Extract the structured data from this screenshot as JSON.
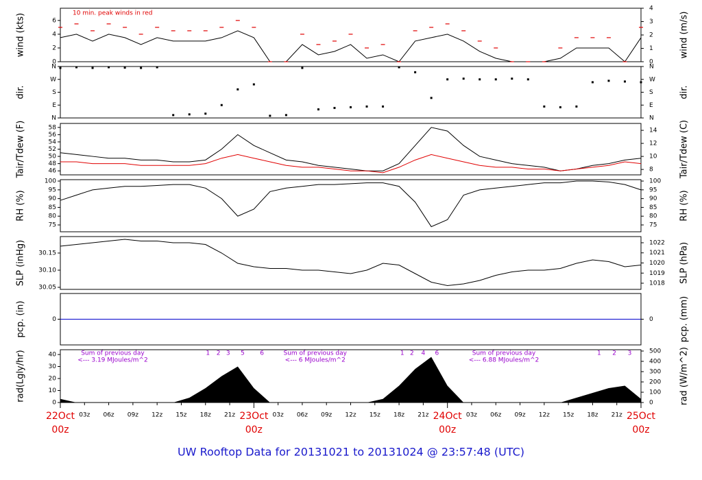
{
  "title": "UW Rooftop Data for 20131021  to  20131024 @ 23:57:48  (UTC)",
  "time_axis": {
    "xlim": [
      0,
      72
    ],
    "x": [
      0,
      2,
      4,
      6,
      8,
      10,
      12,
      14,
      16,
      18,
      20,
      22,
      24,
      26,
      28,
      30,
      32,
      34,
      36,
      38,
      40,
      42,
      44,
      46,
      48,
      50,
      52,
      54,
      56,
      58,
      60,
      62,
      64,
      66,
      68,
      70,
      72
    ],
    "xticks": [
      {
        "value": 0,
        "label": "00z"
      },
      {
        "value": 3,
        "label": "03z"
      },
      {
        "value": 6,
        "label": "06z"
      },
      {
        "value": 9,
        "label": "09z"
      },
      {
        "value": 12,
        "label": "12z"
      },
      {
        "value": 15,
        "label": "15z"
      },
      {
        "value": 18,
        "label": "18z"
      },
      {
        "value": 21,
        "label": "21z"
      },
      {
        "value": 24,
        "label": "00z"
      },
      {
        "value": 27,
        "label": "03z"
      },
      {
        "value": 30,
        "label": "06z"
      },
      {
        "value": 33,
        "label": "09z"
      },
      {
        "value": 36,
        "label": "12z"
      },
      {
        "value": 39,
        "label": "15z"
      },
      {
        "value": 42,
        "label": "18z"
      },
      {
        "value": 45,
        "label": "21z"
      },
      {
        "value": 48,
        "label": "00z"
      },
      {
        "value": 51,
        "label": "03z"
      },
      {
        "value": 54,
        "label": "06z"
      },
      {
        "value": 57,
        "label": "09z"
      },
      {
        "value": 60,
        "label": "12z"
      },
      {
        "value": 63,
        "label": "15z"
      },
      {
        "value": 66,
        "label": "18z"
      },
      {
        "value": 69,
        "label": "21z"
      },
      {
        "value": 72,
        "label": "00z"
      }
    ],
    "day_labels": [
      {
        "value": 0,
        "label": "22Oct"
      },
      {
        "value": 24,
        "label": "23Oct"
      },
      {
        "value": 48,
        "label": "24Oct"
      },
      {
        "value": 72,
        "label": "25Oct"
      }
    ]
  },
  "chart_data": [
    {
      "type": "line",
      "ylabel": "wind (kts)",
      "y2label": "wind (m/s)",
      "ylim": [
        0,
        7.78
      ],
      "yticks": [
        0,
        2,
        4,
        6
      ],
      "y2lim": [
        0,
        4
      ],
      "y2ticks": [
        0,
        1,
        2,
        3,
        4
      ],
      "annotation": "10 min. peak winds in red",
      "series": [
        {
          "color": "#000000",
          "style": "line",
          "values": [
            3.5,
            4,
            3,
            4,
            3.5,
            2.5,
            3.5,
            3,
            3,
            3,
            3.5,
            4.5,
            3.5,
            0,
            0,
            2.5,
            1,
            1.5,
            2.5,
            0.5,
            1,
            0,
            3,
            3.5,
            4,
            3,
            1.5,
            0.5,
            0,
            0,
            0,
            0.5,
            2,
            2,
            2,
            0,
            3.5
          ]
        },
        {
          "color": "#e00000",
          "style": "dash",
          "values": [
            5,
            5.5,
            4.5,
            5.5,
            5,
            4,
            5,
            4.5,
            4.5,
            4.5,
            5,
            6,
            5,
            0,
            0,
            4,
            2.5,
            3,
            4,
            2,
            2.5,
            0,
            4.5,
            5,
            5.5,
            4.5,
            3,
            2,
            0,
            0,
            0,
            2,
            3.5,
            3.5,
            3.5,
            0,
            5
          ]
        }
      ]
    },
    {
      "type": "scatter",
      "ylabel": "dir.",
      "y2label": "dir.",
      "ylim": [
        0,
        360
      ],
      "yticks": [
        {
          "value": 0,
          "label": "N"
        },
        {
          "value": 90,
          "label": "E"
        },
        {
          "value": 180,
          "label": "S"
        },
        {
          "value": 270,
          "label": "W"
        },
        {
          "value": 360,
          "label": "N"
        }
      ],
      "series": [
        {
          "color": "#000000",
          "values": [
            350,
            355,
            350,
            355,
            352,
            350,
            355,
            20,
            25,
            30,
            90,
            200,
            235,
            15,
            20,
            350,
            60,
            70,
            75,
            80,
            80,
            355,
            320,
            140,
            270,
            275,
            270,
            270,
            275,
            270,
            80,
            75,
            80,
            250,
            260,
            255,
            250
          ]
        }
      ]
    },
    {
      "type": "line",
      "ylabel": "Tair/Tdew (F)",
      "y2label": "Tair/Tdew (C)",
      "ylim": [
        44.9,
        59.1
      ],
      "yticks": [
        46,
        48,
        50,
        52,
        54,
        56,
        58
      ],
      "y2lim": [
        7.17,
        15.06
      ],
      "y2ticks": [
        8,
        10,
        12,
        14
      ],
      "series": [
        {
          "color": "#000000",
          "style": "line",
          "values": [
            51,
            50.5,
            50,
            49.5,
            49.5,
            49,
            49,
            48.5,
            48.5,
            49,
            52,
            56,
            53,
            51,
            49,
            48.5,
            47.5,
            47,
            46.5,
            46,
            46,
            48,
            53,
            58,
            57,
            53,
            50,
            49,
            48,
            47.5,
            47,
            46,
            46.5,
            47.5,
            48,
            49,
            49.5
          ]
        },
        {
          "color": "#e00000",
          "style": "line",
          "values": [
            48.5,
            48.5,
            48,
            48,
            48,
            47.5,
            47.5,
            47.5,
            47.5,
            48,
            49.5,
            50.5,
            49.5,
            48.5,
            47.5,
            47,
            47,
            46.5,
            46,
            46,
            45.5,
            47,
            49,
            50.5,
            49.5,
            48.5,
            47.5,
            47,
            47,
            46.5,
            46.5,
            46,
            46.5,
            47,
            47.5,
            48.5,
            48
          ]
        }
      ]
    },
    {
      "type": "line",
      "ylabel": "RH (%)",
      "y2label": "RH (%)",
      "ylim": [
        71.1,
        100.8
      ],
      "yticks": [
        75,
        80,
        85,
        90,
        95,
        100
      ],
      "y2lim": [
        71.1,
        100.8
      ],
      "y2ticks": [
        75,
        80,
        85,
        90,
        95,
        100
      ],
      "series": [
        {
          "color": "#000000",
          "style": "line",
          "values": [
            89,
            92,
            95,
            96,
            97,
            97,
            97.5,
            98,
            98,
            96,
            90,
            80,
            84,
            94,
            96,
            97,
            98,
            98,
            98.5,
            99,
            99,
            97,
            88,
            74,
            78,
            92,
            95,
            96,
            97,
            98,
            99,
            99,
            100,
            100,
            99.5,
            98,
            95
          ]
        }
      ]
    },
    {
      "type": "line",
      "ylabel": "SLP (inHg)",
      "y2label": "SLP (hPa)",
      "ylim": [
        30.044,
        30.198
      ],
      "yticks": [
        30.05,
        {
          "value": 30.1,
          "label": "30.10"
        },
        30.15
      ],
      "y2lim": [
        1017.39,
        1022.61
      ],
      "y2ticks": [
        1018,
        1019,
        1020,
        1021,
        1022
      ],
      "series": [
        {
          "color": "#000000",
          "style": "line",
          "values": [
            30.17,
            30.175,
            30.18,
            30.185,
            30.19,
            30.185,
            30.185,
            30.18,
            30.18,
            30.175,
            30.15,
            30.12,
            30.11,
            30.105,
            30.105,
            30.1,
            30.1,
            30.095,
            30.09,
            30.1,
            30.12,
            30.115,
            30.09,
            30.065,
            30.055,
            30.06,
            30.07,
            30.085,
            30.095,
            30.1,
            30.1,
            30.105,
            30.12,
            30.13,
            30.125,
            30.11,
            30.115
          ]
        }
      ]
    },
    {
      "type": "line",
      "ylabel": "pcp. (in)",
      "y2label": "pcp. (mm)",
      "ylim": [
        -0.1,
        0.1
      ],
      "yticks": [
        0
      ],
      "y2lim": [
        -2.54,
        2.54
      ],
      "y2ticks": [
        0
      ],
      "series": [
        {
          "color": "#0000cc",
          "style": "line",
          "values": [
            0,
            0,
            0,
            0,
            0,
            0,
            0,
            0,
            0,
            0,
            0,
            0,
            0,
            0,
            0,
            0,
            0,
            0,
            0,
            0,
            0,
            0,
            0,
            0,
            0,
            0,
            0,
            0,
            0,
            0,
            0,
            0,
            0,
            0,
            0,
            0,
            0
          ]
        }
      ]
    },
    {
      "type": "area",
      "ylabel": "rad(Lgly/hr)",
      "y2label": "rad (W/m^2)",
      "ylim": [
        0,
        44
      ],
      "yticks": [
        0,
        10,
        20,
        30,
        40
      ],
      "y2lim": [
        0,
        513
      ],
      "y2ticks": [
        0,
        100,
        200,
        300,
        400,
        500
      ],
      "sums": [
        {
          "x": 6.5,
          "lines": [
            "Sum of previous day",
            "<--- 3.19 MJoules/m^2"
          ]
        },
        {
          "x": 31.6,
          "lines": [
            "Sum of previous day",
            "<--- 6 MJoules/m^2"
          ]
        },
        {
          "x": 55,
          "lines": [
            "Sum of previous day",
            "<--- 6.88 MJoules/m^2"
          ]
        }
      ],
      "hour_marks": [
        {
          "x": 18.3,
          "label": "1"
        },
        {
          "x": 19.6,
          "label": "2"
        },
        {
          "x": 20.8,
          "label": "3"
        },
        {
          "x": 22.6,
          "label": "5"
        },
        {
          "x": 25,
          "label": "6"
        },
        {
          "x": 42.4,
          "label": "1"
        },
        {
          "x": 43.6,
          "label": "2"
        },
        {
          "x": 45,
          "label": "4"
        },
        {
          "x": 46.7,
          "label": "6"
        },
        {
          "x": 66.8,
          "label": "1"
        },
        {
          "x": 68.7,
          "label": "2"
        },
        {
          "x": 70.6,
          "label": "3"
        }
      ],
      "series": [
        {
          "color": "#000000",
          "values": [
            3,
            0,
            0,
            0,
            0,
            0,
            0,
            0,
            4,
            12,
            22,
            30,
            12,
            0,
            0,
            0,
            0,
            0,
            0,
            0,
            3,
            14,
            28,
            38,
            14,
            0,
            0,
            0,
            0,
            0,
            0,
            0,
            4,
            8,
            12,
            14,
            3
          ]
        }
      ]
    }
  ]
}
